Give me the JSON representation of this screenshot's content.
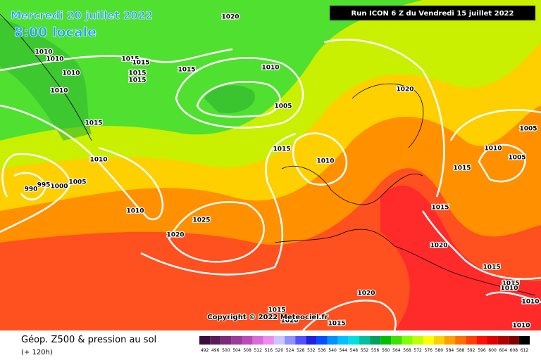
{
  "header": {
    "date": "Mercredi 20 juillet 2022",
    "time": "8:00 locale",
    "run": "Run ICON 6 Z du Vendredi 15 juillet 2022"
  },
  "copyright": "Copyright © 2022 Meteociel.fr",
  "footer": {
    "title": "Géop. Z500 & pression au sol",
    "lead": "(+ 120h)"
  },
  "scale": {
    "labels": [
      492,
      496,
      500,
      504,
      508,
      512,
      516,
      520,
      524,
      528,
      532,
      536,
      540,
      544,
      548,
      552,
      556,
      560,
      564,
      568,
      572,
      576,
      580,
      584,
      588,
      592,
      596,
      600,
      604,
      608,
      612
    ],
    "colors": [
      "#3a0d3a",
      "#5a1a5a",
      "#7a2a7a",
      "#9a3a9a",
      "#ba4aba",
      "#da6ada",
      "#f08af0",
      "#c8c8ff",
      "#9090ff",
      "#5050ff",
      "#2020e0",
      "#0050ff",
      "#0090ff",
      "#00c0ff",
      "#00e0e0",
      "#00c0a0",
      "#00a060",
      "#00c000",
      "#40e000",
      "#80ff00",
      "#c0ff00",
      "#ffff00",
      "#ffd000",
      "#ffa000",
      "#ff7000",
      "#ff4000",
      "#ff1000",
      "#e00000",
      "#b00000",
      "#800000",
      "#000000"
    ]
  },
  "isobars": [
    1020,
    1010,
    1010,
    1010,
    1010,
    1015,
    1015,
    1015,
    1015,
    1015,
    1015,
    1010,
    1005,
    1020,
    1005,
    1010,
    1005,
    1015,
    1010,
    1015,
    1010,
    995,
    990,
    1000,
    1005,
    1010,
    1025,
    1020,
    1015,
    1020,
    1015,
    1015,
    1010,
    1020,
    1015,
    1010,
    1010,
    1015,
    1020
  ]
}
